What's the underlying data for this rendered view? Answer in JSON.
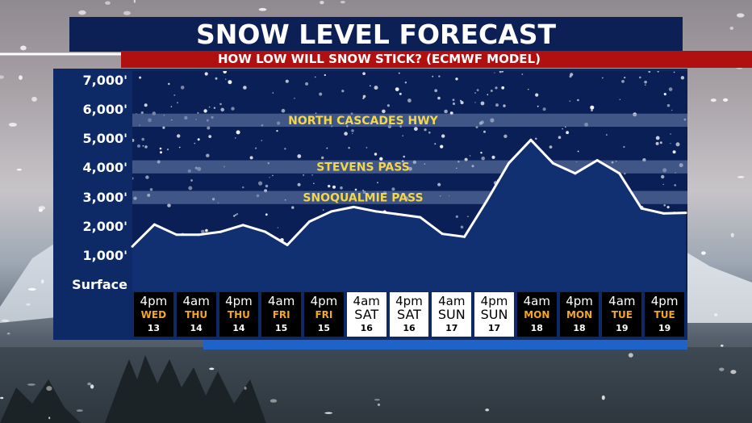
{
  "header": {
    "title": "SNOW LEVEL FORECAST",
    "subtitle": "HOW LOW WILL SNOW STICK?   (ECMWF MODEL)"
  },
  "colors": {
    "title_bg": "#0d2055",
    "subtitle_bg": "#b01010",
    "panel_bg": "#0d2a66",
    "plot_bg": "#0a1f55",
    "line": "#ffffff",
    "pass_band": "#6e84b0",
    "pass_label": "#f2d64b",
    "dark_day_bg": "#000000",
    "light_day_bg": "#ffffff",
    "weekday_accent": "#f5a623"
  },
  "chart_data": {
    "type": "area",
    "title": "SNOW LEVEL FORECAST",
    "subtitle": "HOW LOW WILL SNOW STICK?   (ECMWF MODEL)",
    "y_ticks": [
      {
        "value": 7000,
        "label": "7,000'"
      },
      {
        "value": 6000,
        "label": "6,000'"
      },
      {
        "value": 5000,
        "label": "5,000'"
      },
      {
        "value": 4000,
        "label": "4,000'"
      },
      {
        "value": 3000,
        "label": "3,000'"
      },
      {
        "value": 2000,
        "label": "2,000'"
      },
      {
        "value": 1000,
        "label": "1,000'"
      },
      {
        "value": 0,
        "label": "Surface"
      }
    ],
    "ylim": [
      0,
      7500
    ],
    "x_index_range": [
      0,
      25
    ],
    "series": [
      {
        "values": [
          {
            "x": 0,
            "y": 1350
          },
          {
            "x": 1,
            "y": 2100
          },
          {
            "x": 2,
            "y": 1750
          },
          {
            "x": 3,
            "y": 1750
          },
          {
            "x": 4,
            "y": 1850
          },
          {
            "x": 5,
            "y": 2080
          },
          {
            "x": 6,
            "y": 1850
          },
          {
            "x": 7,
            "y": 1400
          },
          {
            "x": 8,
            "y": 2200
          },
          {
            "x": 9,
            "y": 2550
          },
          {
            "x": 10,
            "y": 2700
          },
          {
            "x": 11,
            "y": 2550
          },
          {
            "x": 12,
            "y": 2450
          },
          {
            "x": 13,
            "y": 2350
          },
          {
            "x": 14,
            "y": 1780
          },
          {
            "x": 15,
            "y": 1680
          },
          {
            "x": 16,
            "y": 2900
          },
          {
            "x": 17,
            "y": 4200
          },
          {
            "x": 18,
            "y": 5000
          },
          {
            "x": 19,
            "y": 4200
          },
          {
            "x": 20,
            "y": 3850
          },
          {
            "x": 21,
            "y": 4300
          },
          {
            "x": 22,
            "y": 3850
          },
          {
            "x": 23,
            "y": 2650
          },
          {
            "x": 24,
            "y": 2480
          },
          {
            "x": 25,
            "y": 2500
          }
        ]
      }
    ],
    "reference_bands": [
      {
        "label": "NORTH CASCADES HWY",
        "y_from": 5450,
        "y_to": 5900
      },
      {
        "label": "STEVENS PASS",
        "y_from": 3850,
        "y_to": 4300
      },
      {
        "label": "SNOQUALMIE PASS",
        "y_from": 2800,
        "y_to": 3250
      }
    ],
    "x_categories": [
      {
        "time": "4pm",
        "day": "WED",
        "date": "13",
        "style": "dark"
      },
      {
        "time": "4am",
        "day": "THU",
        "date": "14",
        "style": "dark"
      },
      {
        "time": "4pm",
        "day": "THU",
        "date": "14",
        "style": "dark"
      },
      {
        "time": "4am",
        "day": "FRI",
        "date": "15",
        "style": "dark"
      },
      {
        "time": "4pm",
        "day": "FRI",
        "date": "15",
        "style": "dark"
      },
      {
        "time": "4am",
        "day": "SAT",
        "date": "16",
        "style": "light"
      },
      {
        "time": "4pm",
        "day": "SAT",
        "date": "16",
        "style": "light"
      },
      {
        "time": "4am",
        "day": "SUN",
        "date": "17",
        "style": "light"
      },
      {
        "time": "4pm",
        "day": "SUN",
        "date": "17",
        "style": "light"
      },
      {
        "time": "4am",
        "day": "MON",
        "date": "18",
        "style": "dark"
      },
      {
        "time": "4pm",
        "day": "MON",
        "date": "18",
        "style": "dark"
      },
      {
        "time": "4am",
        "day": "TUE",
        "date": "19",
        "style": "dark"
      },
      {
        "time": "4pm",
        "day": "TUE",
        "date": "19",
        "style": "dark"
      }
    ]
  }
}
